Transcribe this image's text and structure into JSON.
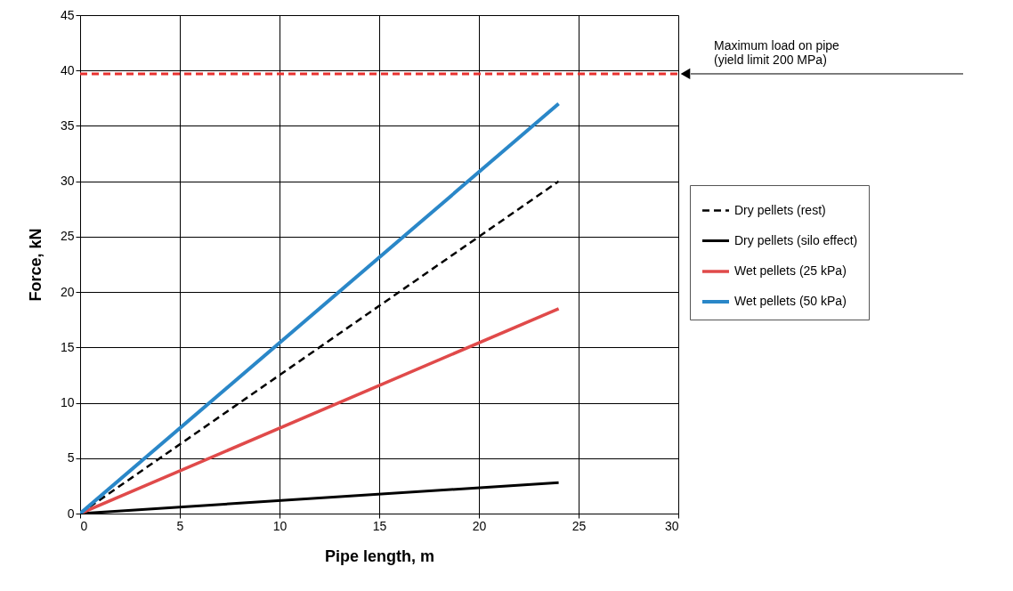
{
  "chart_data": {
    "type": "line",
    "xlabel": "Pipe length, m",
    "ylabel": "Force, kN",
    "x": [
      0,
      24
    ],
    "series": [
      {
        "name": "Dry pellets (rest)",
        "color": "#000000",
        "line_style": "dashed",
        "values": [
          0,
          30
        ]
      },
      {
        "name": "Dry pellets (silo effect)",
        "color": "#000000",
        "line_style": "solid",
        "values": [
          0,
          2.8
        ]
      },
      {
        "name": "Wet pellets (25 kPa)",
        "color": "#e04a4a",
        "line_style": "solid",
        "values": [
          0,
          18.5
        ]
      },
      {
        "name": "Wet pellets (50 kPa)",
        "color": "#2a87c8",
        "line_style": "solid",
        "values": [
          0,
          37
        ]
      }
    ],
    "xlim": [
      0,
      30
    ],
    "xticks": [
      0,
      5,
      10,
      15,
      20,
      25,
      30
    ],
    "ylim": [
      0,
      45
    ],
    "yticks": [
      0,
      5,
      10,
      15,
      20,
      25,
      30,
      35,
      40,
      45
    ],
    "ref_lines": [
      {
        "axis": "y",
        "value": 39.7,
        "label": "Maximum load on pipe\n(yield limit 200 MPa)",
        "color": "#e8312f",
        "line_style": "dashed"
      }
    ],
    "grid": true,
    "legend": "right",
    "marker": "none"
  }
}
